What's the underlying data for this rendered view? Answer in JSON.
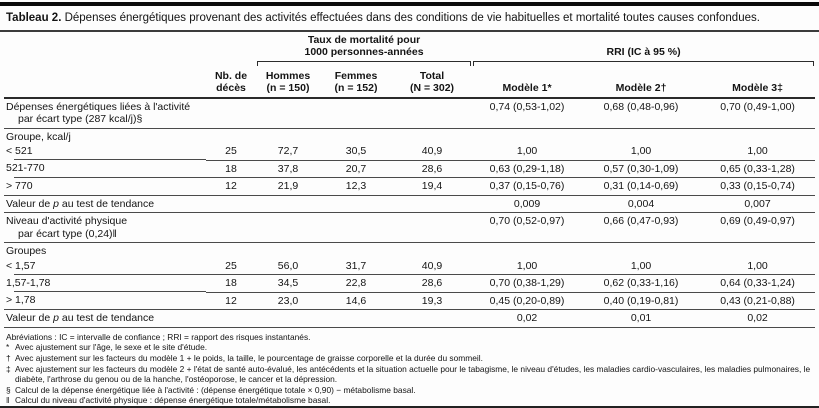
{
  "title": {
    "label": "Tableau 2.",
    "text": " Dépenses énergétiques provenant des activités effectuées dans des conditions de vie habituelles et mortalité toutes causes confondues."
  },
  "header": {
    "deaths": "Nb. de\ndécès",
    "mortality_spanner": "Taux de mortalité pour\n1000 personnes-années",
    "rri_spanner": "RRI (IC à 95 %)",
    "hommes": "Hommes\n(n = 150)",
    "femmes": "Femmes\n(n = 152)",
    "total": "Total\n(N = 302)",
    "modele1": "Modèle 1*",
    "modele2": "Modèle 2†",
    "modele3": "Modèle 3‡"
  },
  "rows": {
    "dee": {
      "label1": "Dépenses énergétiques liées à l'activité",
      "label2": "par écart type (287 kcal/j)§",
      "m1": "0,74 (0,53-1,02)",
      "m2": "0,68 (0,48-0,96)",
      "m3": "0,70 (0,49-1,00)"
    },
    "groupe_kcal": "Groupe, kcal/j",
    "g1": {
      "label": "< 521",
      "deaths": "25",
      "h": "72,7",
      "f": "30,5",
      "t": "40,9",
      "m1": "1,00",
      "m2": "1,00",
      "m3": "1,00"
    },
    "g2": {
      "label": "521-770",
      "deaths": "18",
      "h": "37,8",
      "f": "20,7",
      "t": "28,6",
      "m1": "0,63 (0,29-1,18)",
      "m2": "0,57 (0,30-1,09)",
      "m3": "0,65 (0,33-1,28)"
    },
    "g3": {
      "label": "> 770",
      "deaths": "12",
      "h": "21,9",
      "f": "12,3",
      "t": "19,4",
      "m1": "0,37 (0,15-0,76)",
      "m2": "0,31 (0,14-0,69)",
      "m3": "0,33 (0,15-0,74)"
    },
    "trend1": {
      "pre": "Valeur de ",
      "p": "p",
      "post": " au test de tendance",
      "m1": "0,009",
      "m2": "0,004",
      "m3": "0,007"
    },
    "nap": {
      "label1": "Niveau d'activité physique",
      "label2": "par écart type (0,24)‖",
      "m1": "0,70 (0,52-0,97)",
      "m2": "0,66 (0,47-0,93)",
      "m3": "0,69 (0,49-0,97)"
    },
    "groupes": "Groupes",
    "n1": {
      "label": "< 1,57",
      "deaths": "25",
      "h": "56,0",
      "f": "31,7",
      "t": "40,9",
      "m1": "1,00",
      "m2": "1,00",
      "m3": "1,00"
    },
    "n2": {
      "label": "1,57-1,78",
      "deaths": "18",
      "h": "34,5",
      "f": "22,8",
      "t": "28,6",
      "m1": "0,70 (0,38-1,29)",
      "m2": "0,62 (0,33-1,16)",
      "m3": "0,64 (0,33-1,24)"
    },
    "n3": {
      "label": "> 1,78",
      "deaths": "12",
      "h": "23,0",
      "f": "14,6",
      "t": "19,3",
      "m1": "0,45 (0,20-0,89)",
      "m2": "0,40 (0,19-0,81)",
      "m3": "0,43 (0,21-0,88)"
    },
    "trend2": {
      "pre": "Valeur de ",
      "p": "p",
      "post": " au test de tendance",
      "m1": "0,02",
      "m2": "0,01",
      "m3": "0,02"
    }
  },
  "footnotes": [
    {
      "sym": "",
      "text": "Abréviations : IC = intervalle de confiance ; RRI = rapport des risques instantanés."
    },
    {
      "sym": "*",
      "text": "Avec ajustement sur l'âge, le sexe et le site d'étude."
    },
    {
      "sym": "†",
      "text": "Avec ajustement sur les facteurs du modèle 1 + le poids, la taille, le pourcentage de graisse corporelle et la durée du sommeil."
    },
    {
      "sym": "‡",
      "text": "Avec ajustement sur les facteurs du modèle 2 + l'état de santé auto-évalué, les antécédents et la situation actuelle pour le tabagisme, le niveau d'études, les maladies cardio-vasculaires, les maladies pulmonaires, le diabète, l'arthrose du genou ou de la hanche, l'ostéoporose, le cancer et la dépression."
    },
    {
      "sym": "§",
      "text": "Calcul de la dépense énergétique liée à l'activité : (dépense énergétique totale × 0,90) − métabolisme basal."
    },
    {
      "sym": "‖",
      "text": "Calcul du niveau d'activité physique : dépense énergétique totale/métabolisme basal."
    }
  ]
}
